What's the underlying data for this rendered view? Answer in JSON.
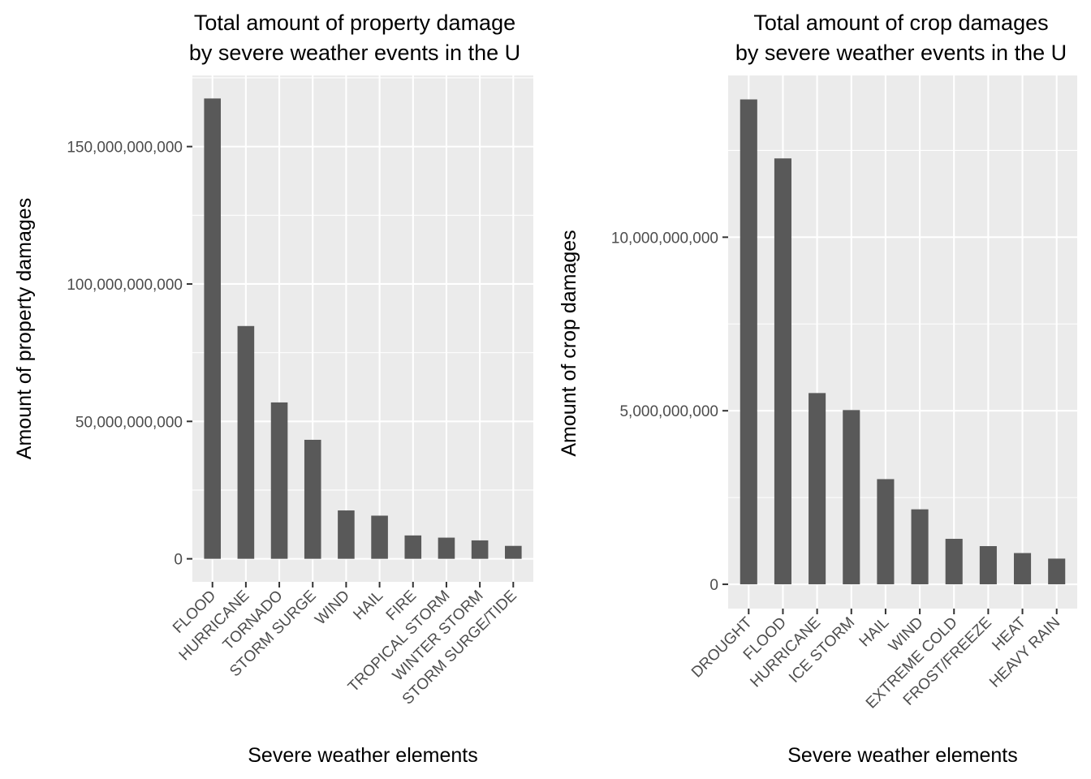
{
  "chart_data": [
    {
      "type": "bar",
      "title_lines": [
        "Total amount of property damage",
        "by severe weather events in the U"
      ],
      "xlabel": "Severe weather elements",
      "ylabel": "Amount of property damages",
      "categories": [
        "FLOOD",
        "HURRICANE",
        "TORNADO",
        "STORM SURGE",
        "WIND",
        "HAIL",
        "FIRE",
        "TROPICAL STORM",
        "WINTER STORM",
        "STORM SURGE/TIDE"
      ],
      "values": [
        167500000000,
        84700000000,
        56900000000,
        43300000000,
        17600000000,
        15700000000,
        8500000000,
        7700000000,
        6700000000,
        4700000000
      ],
      "yticks": [
        0,
        50000000000,
        100000000000,
        150000000000
      ],
      "ytick_labels": [
        "0",
        "50,000,000,000",
        "100,000,000,000",
        "150,000,000,000"
      ],
      "ylim": [
        -8375000000,
        175875000000
      ],
      "grid": true,
      "bar_color": "#595959"
    },
    {
      "type": "bar",
      "title_lines": [
        "Total amount of crop damages",
        "by severe weather events in the U"
      ],
      "xlabel": "Severe weather elements",
      "ylabel": "Amount of crop damages",
      "categories": [
        "DROUGHT",
        "FLOOD",
        "HURRICANE",
        "ICE STORM",
        "HAIL",
        "WIND",
        "EXTREME COLD",
        "FROST/FREEZE",
        "HEAT",
        "HEAVY RAIN"
      ],
      "values": [
        13970000000,
        12270000000,
        5510000000,
        5020000000,
        3030000000,
        2160000000,
        1310000000,
        1100000000,
        900000000,
        740000000
      ],
      "yticks": [
        0,
        5000000000,
        10000000000
      ],
      "ytick_labels": [
        "0",
        "5,000,000,000",
        "10,000,000,000"
      ],
      "ylim": [
        -700000000,
        14660000000
      ],
      "grid": true,
      "bar_color": "#595959"
    }
  ]
}
